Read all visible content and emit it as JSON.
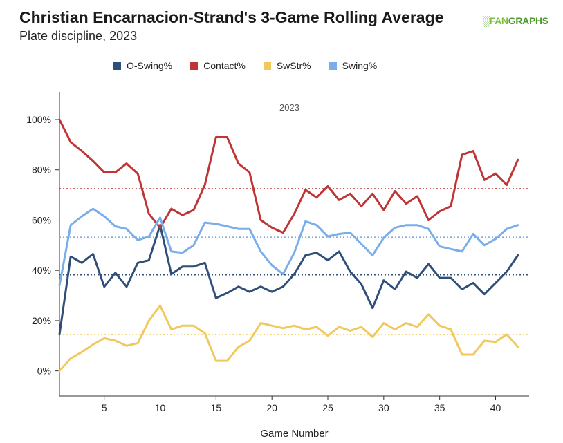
{
  "header": {
    "title": "Christian Encarnacion-Strand's 3-Game Rolling Average",
    "subtitle": "Plate discipline, 2023",
    "logo_mark": "░",
    "logo_fan": "FAN",
    "logo_graphs": "GRAPHS"
  },
  "chart_data": {
    "type": "line",
    "title": "Christian Encarnacion-Strand's 3-Game Rolling Average",
    "subtitle": "Plate discipline, 2023",
    "annotation": "2023",
    "xlabel": "Game Number",
    "ylabel": "",
    "xlim": [
      1,
      43
    ],
    "ylim": [
      -10,
      111
    ],
    "x_ticks": [
      5,
      10,
      15,
      20,
      25,
      30,
      35,
      40
    ],
    "x_tick_labels": [
      "5",
      "10",
      "15",
      "20",
      "25",
      "30",
      "35",
      "40"
    ],
    "y_ticks": [
      0,
      20,
      40,
      60,
      80,
      100
    ],
    "y_tick_labels": [
      "0%",
      "20%",
      "40%",
      "60%",
      "80%",
      "100%"
    ],
    "grid": false,
    "legend_position": "top",
    "x": [
      1,
      2,
      3,
      4,
      5,
      6,
      7,
      8,
      9,
      10,
      11,
      12,
      13,
      14,
      15,
      16,
      17,
      18,
      19,
      20,
      21,
      22,
      23,
      24,
      25,
      26,
      27,
      28,
      29,
      30,
      31,
      32,
      33,
      34,
      35,
      36,
      37,
      38,
      39,
      40,
      41,
      42
    ],
    "series": [
      {
        "name": "O-Swing%",
        "color": "#2f4e7a",
        "average": 38.2,
        "values": [
          14.5,
          45.5,
          43,
          46.5,
          33.5,
          39,
          33.5,
          43,
          44,
          58,
          38.5,
          41.5,
          41.5,
          43,
          29,
          31,
          33.5,
          31.5,
          33.5,
          31.5,
          33.5,
          38.5,
          46,
          47,
          44,
          47.5,
          39.5,
          34.5,
          25,
          36,
          32.5,
          39.5,
          37,
          42.5,
          37,
          37,
          32.5,
          35,
          30.5,
          35,
          39.5,
          46
        ]
      },
      {
        "name": "Contact%",
        "color": "#bf3434",
        "average": 72.5,
        "values": [
          100,
          91,
          87.5,
          83.5,
          79,
          79,
          82.5,
          78.5,
          62.5,
          57,
          64.5,
          62,
          64,
          74,
          93,
          93,
          82.5,
          79,
          60,
          57,
          55,
          62.5,
          72,
          69,
          73.5,
          68,
          70.5,
          65.5,
          70.5,
          64,
          71.5,
          66.5,
          69.5,
          60,
          63.5,
          65.5,
          86,
          87.5,
          76,
          78.5,
          74,
          84
        ]
      },
      {
        "name": "SwStr%",
        "color": "#f0c85c",
        "average": 14.5,
        "values": [
          0,
          5,
          7.5,
          10.5,
          13,
          12,
          10,
          11,
          20,
          26,
          16.5,
          18,
          18,
          15,
          4,
          4,
          9.5,
          12,
          19,
          18,
          17,
          18,
          16.5,
          17.5,
          14,
          17.5,
          16,
          17.5,
          13.5,
          19,
          16.5,
          19,
          17.5,
          22.5,
          18,
          16.5,
          6.5,
          6.5,
          12,
          11.5,
          14.5,
          9.5
        ]
      },
      {
        "name": "Swing%",
        "color": "#7aaeea",
        "average": 53.2,
        "values": [
          34,
          58,
          61.5,
          64.5,
          61.5,
          57.5,
          56.5,
          52,
          53.5,
          61,
          47.5,
          47,
          50,
          59,
          58.5,
          57.5,
          56.5,
          56.5,
          47.5,
          42,
          38.5,
          47,
          59.5,
          58,
          53.5,
          54.5,
          55,
          50.5,
          46,
          53,
          57,
          58,
          58,
          56.5,
          49.5,
          48.5,
          47.5,
          54.5,
          50,
          52.5,
          56.5,
          58
        ]
      }
    ]
  }
}
